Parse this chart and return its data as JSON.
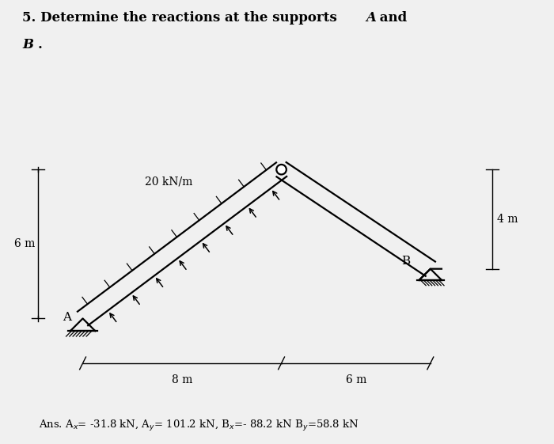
{
  "bg_color": "#f0f0f0",
  "A": [
    0.0,
    0.0
  ],
  "C": [
    8.0,
    6.0
  ],
  "B": [
    14.0,
    2.0
  ],
  "load_label": "20 kN/m",
  "dim_left_label": "6 m",
  "dim_bottom_label1": "8 m",
  "dim_bottom_label2": "6 m",
  "dim_right_label": "4 m",
  "answer": "Ans. A$_x$= -31.8 kN, A$_y$= 101.2 kN, B$_x$=- 88.2 kN B$_y$=58.8 kN",
  "title_main": "5. Determine the reactions at the supports ",
  "title_A": "A",
  "title_and": " and",
  "title_B": "B",
  "title_dot": "."
}
